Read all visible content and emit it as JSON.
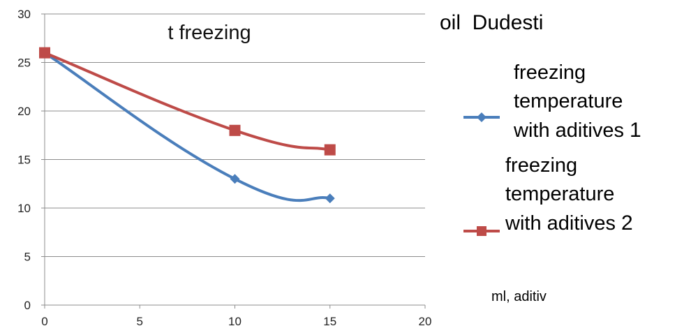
{
  "chart_data": {
    "type": "line",
    "title": "oil  Dudesti",
    "plot_label": "t freezing",
    "xlabel": "ml, aditiv",
    "ylabel": "",
    "xlim": [
      0,
      20
    ],
    "ylim": [
      0,
      30
    ],
    "x_ticks": [
      0,
      5,
      10,
      15,
      20
    ],
    "y_ticks": [
      0,
      5,
      10,
      15,
      20,
      25,
      30
    ],
    "grid": "horizontal",
    "legend_position": "right",
    "series": [
      {
        "name": "freezing temperature with aditives",
        "name_lines": [
          "freezing",
          "temperature",
          "with aditives"
        ],
        "suffix": "1",
        "color": "#4a7ebb",
        "marker": "diamond",
        "x": [
          0,
          10,
          15
        ],
        "y": [
          26,
          13,
          11
        ]
      },
      {
        "name": "freezing temperature with aditives",
        "name_lines": [
          "freezing",
          "temperature",
          "with aditives"
        ],
        "suffix": "2",
        "color": "#be4b48",
        "marker": "square",
        "x": [
          0,
          10,
          15
        ],
        "y": [
          26,
          18,
          16
        ]
      }
    ]
  }
}
